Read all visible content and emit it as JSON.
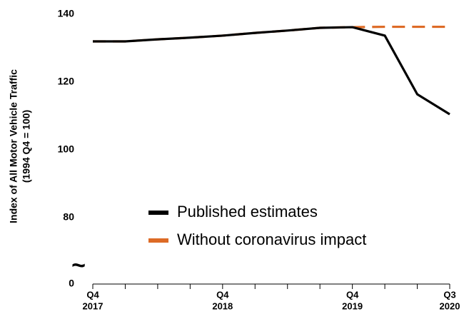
{
  "chart_data": {
    "type": "line",
    "categories": [
      [
        "Q4",
        "2017"
      ],
      null,
      null,
      null,
      [
        "Q4",
        "2018"
      ],
      null,
      null,
      null,
      [
        "Q4",
        "2019"
      ],
      null,
      null,
      [
        "Q3",
        "2020"
      ]
    ],
    "series": [
      {
        "name": "Without coronavirus impact",
        "color": "#dd6b26",
        "dashed": true,
        "values": [
          132.0,
          132.0,
          132.6,
          133.1,
          133.7,
          134.5,
          135.2,
          136.0,
          136.2,
          136.3,
          136.3,
          136.3
        ]
      },
      {
        "name": "Published estimates",
        "color": "#000000",
        "dashed": false,
        "values": [
          132.0,
          132.0,
          132.6,
          133.1,
          133.7,
          134.5,
          135.2,
          136.0,
          136.2,
          133.7,
          116.4,
          110.5
        ]
      }
    ],
    "ylabel": [
      "Index of All Motor Vehicle Traffic",
      "(1994 Q4 = 100)"
    ],
    "ylim": [
      0,
      140
    ],
    "yticks": [
      0,
      80,
      100,
      120,
      140
    ],
    "y_break": [
      0,
      80
    ],
    "y_break_symbol": "~",
    "legend": "center"
  }
}
